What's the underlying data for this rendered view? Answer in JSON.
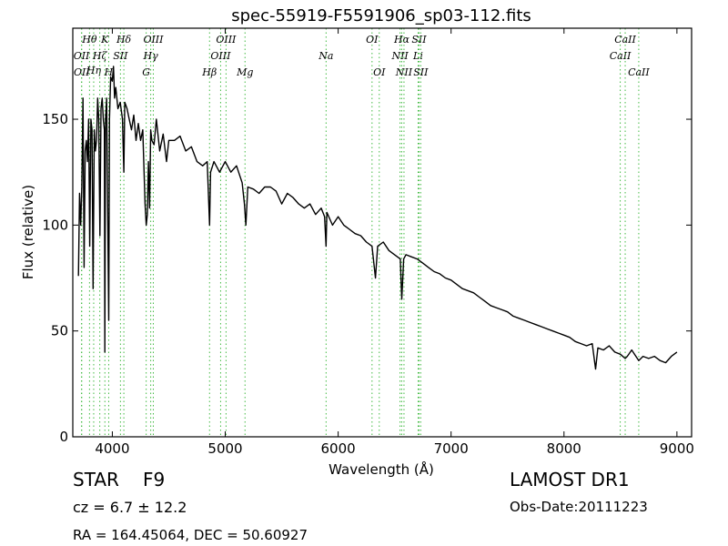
{
  "chart_data": {
    "type": "line",
    "title": "spec-55919-F5591906_sp03-112.fits",
    "xlabel": "Wavelength (Å)",
    "ylabel": "Flux (relative)",
    "xlim": [
      3650,
      9130
    ],
    "ylim": [
      0,
      193
    ],
    "xticks": [
      4000,
      5000,
      6000,
      7000,
      8000,
      9000
    ],
    "yticks": [
      0,
      50,
      100,
      150
    ],
    "grid": false,
    "line_color": "#000000",
    "marker_color": "#44bb44",
    "series": [
      {
        "x": [
          3700,
          3710,
          3720,
          3730,
          3740,
          3750,
          3760,
          3770,
          3780,
          3790,
          3800,
          3810,
          3820,
          3830,
          3840,
          3850,
          3860,
          3870,
          3880,
          3890,
          3900,
          3910,
          3920,
          3930,
          3934,
          3940,
          3950,
          3960,
          3968,
          3975,
          3985,
          4000,
          4010,
          4020,
          4030,
          4050,
          4070,
          4090,
          4102,
          4110,
          4130,
          4150,
          4170,
          4190,
          4210,
          4230,
          4250,
          4270,
          4290,
          4300,
          4310,
          4320,
          4330,
          4340,
          4350,
          4370,
          4390,
          4420,
          4450,
          4480,
          4500,
          4550,
          4600,
          4650,
          4700,
          4750,
          4800,
          4840,
          4861,
          4870,
          4900,
          4950,
          5000,
          5050,
          5100,
          5150,
          5170,
          5183,
          5200,
          5250,
          5300,
          5350,
          5400,
          5450,
          5500,
          5550,
          5600,
          5650,
          5700,
          5750,
          5800,
          5850,
          5880,
          5893,
          5900,
          5950,
          6000,
          6050,
          6100,
          6150,
          6200,
          6250,
          6300,
          6330,
          6350,
          6400,
          6450,
          6500,
          6550,
          6563,
          6580,
          6600,
          6650,
          6700,
          6750,
          6800,
          6850,
          6900,
          6950,
          7000,
          7100,
          7200,
          7250,
          7300,
          7350,
          7400,
          7450,
          7500,
          7550,
          7600,
          7650,
          7700,
          7750,
          7800,
          7850,
          7900,
          7950,
          8000,
          8050,
          8100,
          8150,
          8200,
          8250,
          8280,
          8300,
          8350,
          8400,
          8450,
          8500,
          8542,
          8560,
          8600,
          8662,
          8700,
          8750,
          8800,
          8850,
          8900,
          8950,
          9000
        ],
        "y": [
          76,
          115,
          100,
          118,
          160,
          80,
          135,
          140,
          130,
          150,
          90,
          150,
          145,
          70,
          145,
          135,
          140,
          160,
          150,
          95,
          155,
          160,
          150,
          145,
          40,
          150,
          160,
          100,
          55,
          150,
          170,
          168,
          175,
          160,
          165,
          155,
          158,
          150,
          125,
          158,
          155,
          150,
          145,
          152,
          140,
          148,
          140,
          145,
          110,
          100,
          105,
          130,
          108,
          145,
          140,
          138,
          150,
          135,
          143,
          130,
          140,
          140,
          142,
          135,
          137,
          130,
          128,
          130,
          100,
          125,
          130,
          125,
          130,
          125,
          128,
          120,
          110,
          100,
          118,
          117,
          115,
          118,
          118,
          116,
          110,
          115,
          113,
          110,
          108,
          110,
          105,
          108,
          104,
          90,
          106,
          100,
          104,
          100,
          98,
          96,
          95,
          92,
          90,
          75,
          90,
          92,
          88,
          86,
          84,
          65,
          84,
          86,
          85,
          84,
          82,
          80,
          78,
          77,
          75,
          74,
          70,
          68,
          66,
          64,
          62,
          61,
          60,
          59,
          57,
          56,
          55,
          54,
          53,
          52,
          51,
          50,
          49,
          48,
          47,
          45,
          44,
          43,
          44,
          32,
          42,
          41,
          43,
          40,
          39,
          37,
          38,
          41,
          36,
          38,
          37,
          38,
          36,
          35,
          38,
          40
        ]
      }
    ],
    "lines": [
      {
        "label": "OII",
        "x": 3727,
        "row": 1
      },
      {
        "label": "OII",
        "x": 3729,
        "row": 2
      },
      {
        "label": "Hθ",
        "x": 3798,
        "row": 0
      },
      {
        "label": "Hη",
        "x": 3835,
        "row": 1.5
      },
      {
        "label": "Hζ",
        "x": 3889,
        "row": 1
      },
      {
        "label": "K",
        "x": 3934,
        "row": 0
      },
      {
        "label": "H",
        "x": 3968,
        "row": 2
      },
      {
        "label": "SII",
        "x": 4072,
        "row": 1
      },
      {
        "label": "Hδ",
        "x": 4102,
        "row": 0
      },
      {
        "label": "G",
        "x": 4300,
        "row": 2
      },
      {
        "label": "Hγ",
        "x": 4340,
        "row": 1
      },
      {
        "label": "OIII",
        "x": 4363,
        "row": 0
      },
      {
        "label": "Hβ",
        "x": 4861,
        "row": 2
      },
      {
        "label": "OIII",
        "x": 4959,
        "row": 1
      },
      {
        "label": "OIII",
        "x": 5007,
        "row": 0
      },
      {
        "label": "Mg",
        "x": 5175,
        "row": 2
      },
      {
        "label": "Na",
        "x": 5893,
        "row": 1
      },
      {
        "label": "OI",
        "x": 6300,
        "row": 0
      },
      {
        "label": "OI",
        "x": 6364,
        "row": 2
      },
      {
        "label": "NII",
        "x": 6548,
        "row": 1
      },
      {
        "label": "Hα",
        "x": 6563,
        "row": 0
      },
      {
        "label": "NII",
        "x": 6583,
        "row": 2
      },
      {
        "label": "Li",
        "x": 6708,
        "row": 1
      },
      {
        "label": "SII",
        "x": 6716,
        "row": 0
      },
      {
        "label": "SII",
        "x": 6731,
        "row": 2
      },
      {
        "label": "CaII",
        "x": 8498,
        "row": 1
      },
      {
        "label": "CaII",
        "x": 8542,
        "row": 0
      },
      {
        "label": "CaII",
        "x": 8662,
        "row": 2
      }
    ]
  },
  "info": {
    "class_label": "STAR",
    "subclass": "F9",
    "redshift": "cz = 6.7 ± 12.2",
    "coords": "RA = 164.45064, DEC = 50.60927",
    "survey": "LAMOST DR1",
    "obs_date": "Obs-Date:20111223"
  }
}
